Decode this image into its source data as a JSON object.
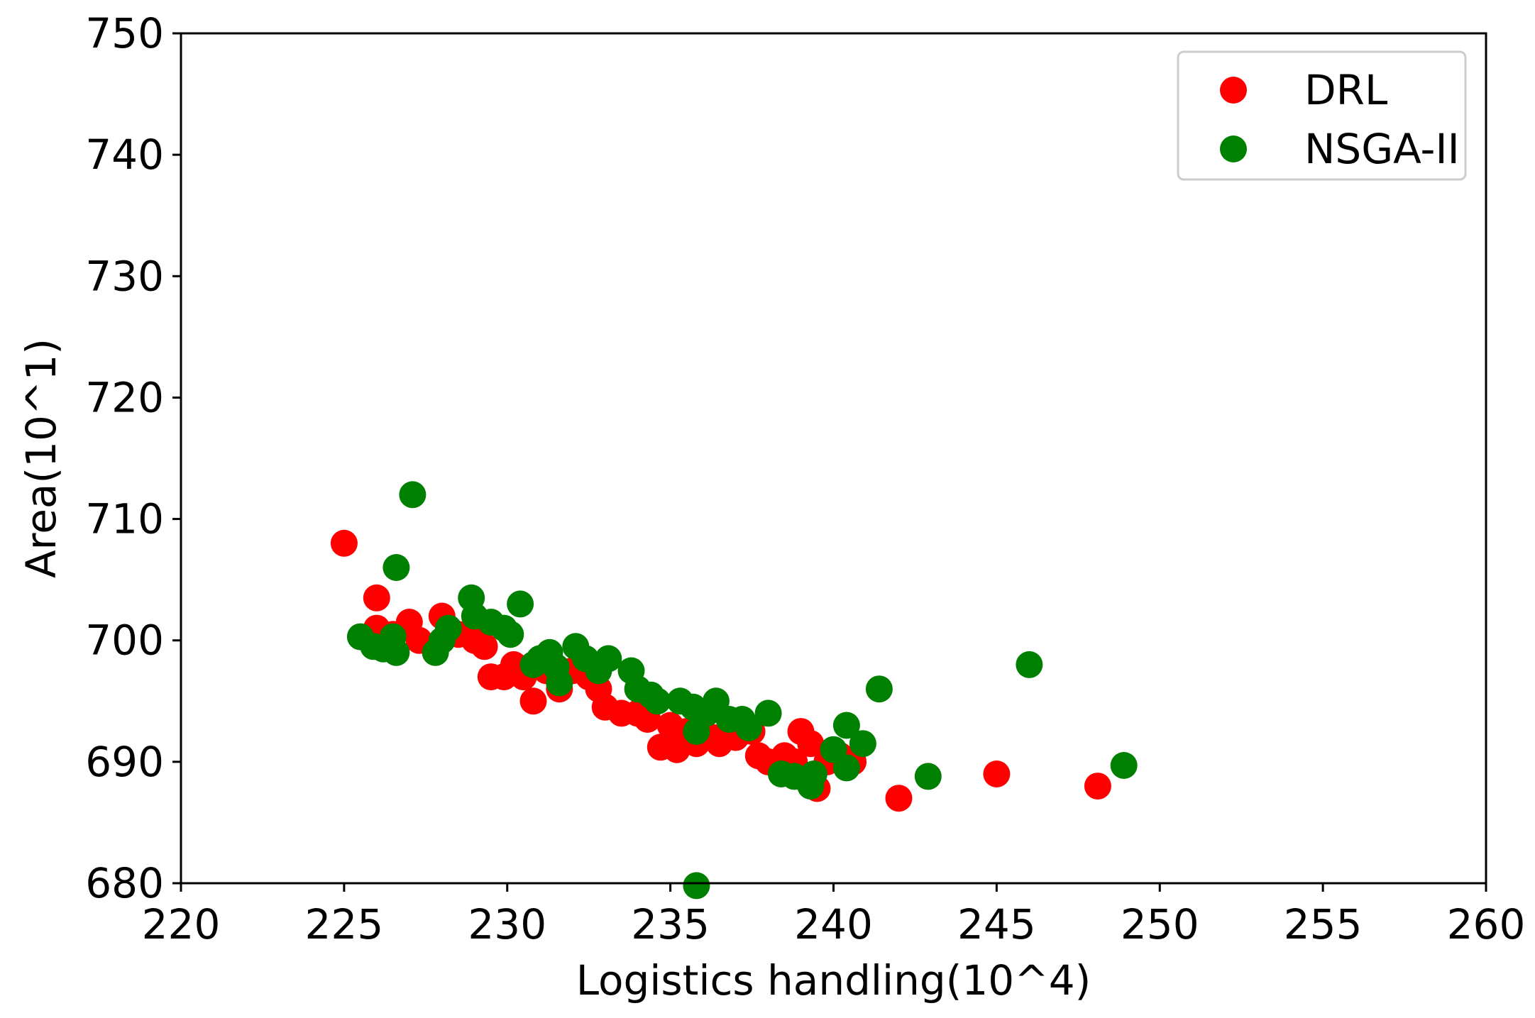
{
  "chart_data": {
    "type": "scatter",
    "title": "",
    "xlabel": "Logistics handling(10^4)",
    "ylabel": "Area(10^1)",
    "xlim": [
      220,
      260
    ],
    "ylim": [
      680,
      750
    ],
    "xticks": [
      220,
      225,
      230,
      235,
      240,
      245,
      250,
      255,
      260
    ],
    "yticks": [
      680,
      690,
      700,
      710,
      720,
      730,
      740,
      750
    ],
    "grid": false,
    "legend_position": "top-right",
    "series": [
      {
        "name": "DRL",
        "color": "#ff0000",
        "points": [
          [
            225.0,
            708.0
          ],
          [
            226.0,
            703.5
          ],
          [
            226.0,
            701.0
          ],
          [
            226.5,
            700.5
          ],
          [
            227.0,
            701.5
          ],
          [
            227.3,
            700.0
          ],
          [
            228.0,
            702.0
          ],
          [
            228.5,
            700.5
          ],
          [
            229.0,
            700.0
          ],
          [
            229.3,
            699.5
          ],
          [
            229.5,
            697.0
          ],
          [
            229.9,
            697.0
          ],
          [
            230.2,
            698.0
          ],
          [
            230.5,
            697.0
          ],
          [
            230.8,
            695.0
          ],
          [
            231.2,
            697.5
          ],
          [
            231.6,
            696.0
          ],
          [
            232.0,
            697.5
          ],
          [
            232.5,
            697.0
          ],
          [
            232.8,
            696.0
          ],
          [
            233.0,
            694.5
          ],
          [
            233.5,
            694.0
          ],
          [
            234.0,
            694.0
          ],
          [
            234.3,
            693.5
          ],
          [
            234.7,
            691.2
          ],
          [
            235.0,
            693.0
          ],
          [
            235.2,
            691.0
          ],
          [
            235.5,
            692.5
          ],
          [
            235.8,
            691.5
          ],
          [
            236.3,
            692.0
          ],
          [
            236.5,
            691.5
          ],
          [
            237.0,
            692.0
          ],
          [
            237.5,
            692.5
          ],
          [
            237.7,
            690.5
          ],
          [
            238.0,
            690.0
          ],
          [
            238.5,
            690.5
          ],
          [
            238.8,
            690.0
          ],
          [
            239.0,
            692.5
          ],
          [
            239.3,
            691.5
          ],
          [
            239.5,
            687.8
          ],
          [
            239.8,
            690.0
          ],
          [
            240.2,
            690.5
          ],
          [
            240.6,
            690.0
          ],
          [
            242.0,
            687.0
          ],
          [
            245.0,
            689.0
          ],
          [
            248.1,
            688.0
          ]
        ]
      },
      {
        "name": "NSGA-II",
        "color": "#008000",
        "points": [
          [
            225.5,
            700.3
          ],
          [
            225.9,
            699.5
          ],
          [
            226.2,
            699.3
          ],
          [
            226.5,
            700.3
          ],
          [
            226.6,
            699.0
          ],
          [
            226.6,
            706.0
          ],
          [
            227.1,
            712.0
          ],
          [
            227.8,
            699.0
          ],
          [
            228.0,
            700.0
          ],
          [
            228.2,
            701.0
          ],
          [
            228.9,
            703.5
          ],
          [
            229.0,
            702.0
          ],
          [
            229.5,
            701.5
          ],
          [
            229.9,
            701.0
          ],
          [
            230.1,
            700.5
          ],
          [
            230.4,
            703.0
          ],
          [
            230.8,
            698.0
          ],
          [
            231.0,
            698.5
          ],
          [
            231.3,
            699.0
          ],
          [
            231.5,
            697.8
          ],
          [
            231.6,
            696.5
          ],
          [
            232.1,
            699.5
          ],
          [
            232.4,
            698.5
          ],
          [
            232.8,
            697.5
          ],
          [
            233.1,
            698.5
          ],
          [
            233.8,
            697.5
          ],
          [
            234.0,
            696.0
          ],
          [
            234.4,
            695.5
          ],
          [
            234.6,
            695.0
          ],
          [
            235.3,
            695.0
          ],
          [
            235.7,
            694.5
          ],
          [
            235.8,
            692.5
          ],
          [
            235.8,
            679.8
          ],
          [
            236.1,
            694.0
          ],
          [
            236.4,
            695.0
          ],
          [
            236.8,
            693.5
          ],
          [
            237.2,
            693.5
          ],
          [
            237.4,
            692.8
          ],
          [
            238.0,
            694.0
          ],
          [
            238.4,
            689.0
          ],
          [
            238.8,
            688.8
          ],
          [
            239.3,
            688.0
          ],
          [
            239.4,
            689.0
          ],
          [
            240.0,
            691.0
          ],
          [
            240.4,
            689.5
          ],
          [
            240.4,
            693.0
          ],
          [
            240.9,
            691.5
          ],
          [
            241.4,
            696.0
          ],
          [
            242.9,
            688.8
          ],
          [
            246.0,
            698.0
          ],
          [
            248.9,
            689.7
          ]
        ]
      }
    ]
  }
}
